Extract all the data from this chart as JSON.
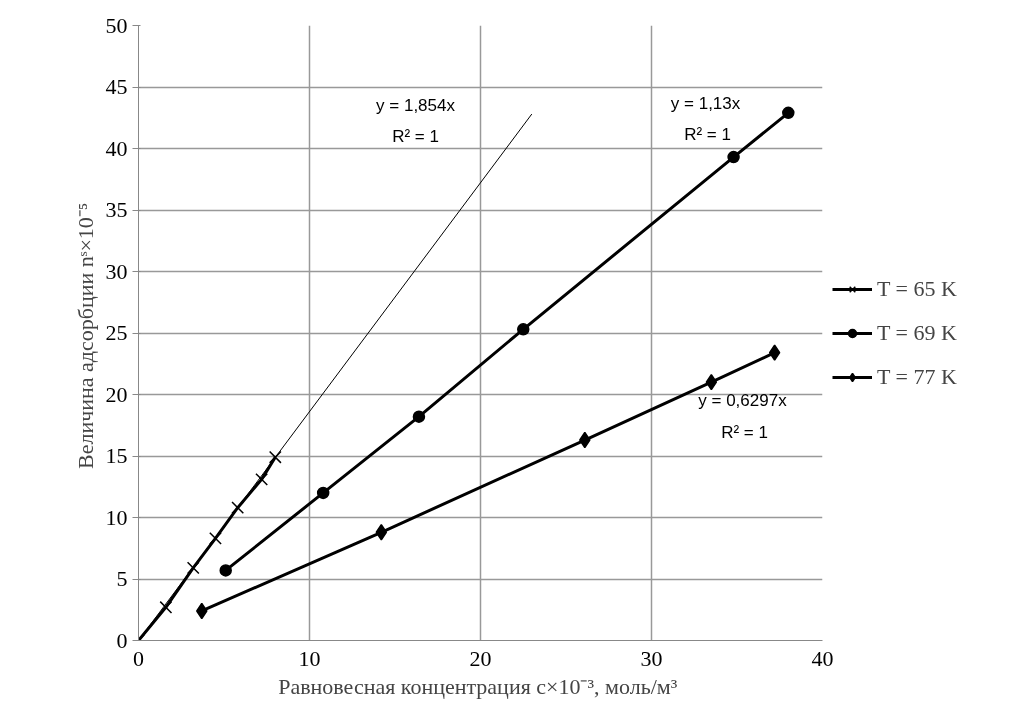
{
  "chart_data": {
    "type": "line",
    "xlabel": "Равновесная концентрация  c×10⁻³, моль/м³",
    "ylabel": "Величина адсорбции  nˢ×10⁻⁵",
    "xlim": [
      0,
      40
    ],
    "xticks": [
      0,
      10,
      20,
      30,
      40
    ],
    "ylim": [
      0,
      50
    ],
    "yticks": [
      0,
      5,
      10,
      15,
      20,
      25,
      30,
      35,
      40,
      45,
      50
    ],
    "grid": true,
    "legend": "right",
    "series": [
      {
        "name": "T = 65 K",
        "color": "#000000",
        "marker": "cross",
        "x": [
          0,
          1.6,
          3.2,
          4.5,
          5.8,
          7.2,
          8.0
        ],
        "values": [
          0,
          2.7,
          5.9,
          8.3,
          10.8,
          13.1,
          14.9
        ]
      },
      {
        "name": "T = 69 K",
        "color": "#000000",
        "marker": "circle",
        "x": [
          5.1,
          10.8,
          16.4,
          22.5,
          34.8,
          38.0
        ],
        "values": [
          5.7,
          12.0,
          18.2,
          25.3,
          39.3,
          42.9
        ]
      },
      {
        "name": "T = 77 K",
        "color": "#000000",
        "marker": "diamond",
        "x": [
          3.7,
          14.2,
          26.1,
          33.5,
          37.2
        ],
        "values": [
          2.4,
          8.8,
          16.3,
          21.0,
          23.4
        ]
      },
      {
        "type": "line",
        "color": "#000000",
        "marker": "none",
        "x": [
          0,
          23.0
        ],
        "values": [
          0,
          42.8
        ]
      }
    ],
    "annotations": [
      "y = 1,854x",
      "R² = 1",
      "y = 1,13x",
      "R² = 1",
      "y = 0,6297x",
      "R² = 1"
    ]
  }
}
